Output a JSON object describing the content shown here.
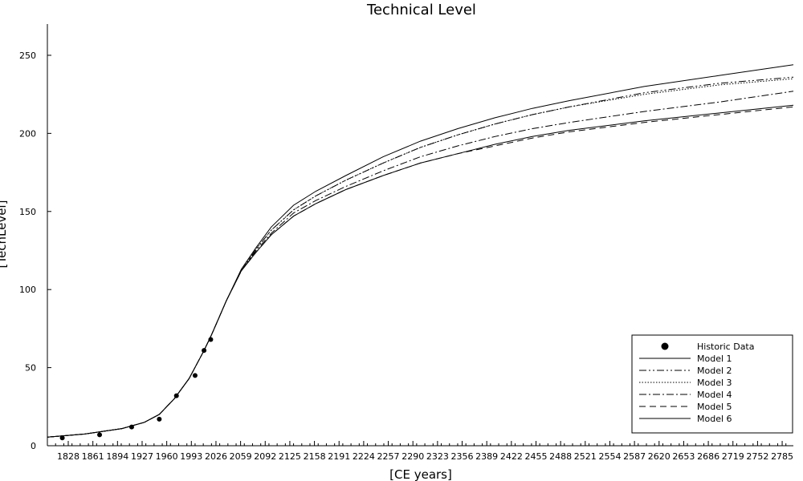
{
  "chart_data": {
    "type": "line",
    "title": "Technical Level",
    "xlabel": "[CE years]",
    "ylabel": "[TechLevel]",
    "xlim": [
      1800,
      2800
    ],
    "ylim": [
      0,
      270
    ],
    "x_ticks": [
      1828,
      1861,
      1894,
      1927,
      1960,
      1993,
      2026,
      2059,
      2092,
      2125,
      2158,
      2191,
      2224,
      2257,
      2290,
      2323,
      2356,
      2389,
      2422,
      2455,
      2488,
      2521,
      2554,
      2587,
      2620,
      2653,
      2686,
      2719,
      2752,
      2785
    ],
    "y_ticks": [
      0,
      50,
      100,
      150,
      200,
      250
    ],
    "grid": false,
    "legend_position": "bottom-right",
    "historic_data": {
      "name": "Historic Data",
      "x": [
        1820,
        1870,
        1913,
        1950,
        1973,
        1998,
        2010,
        2019
      ],
      "y": [
        5,
        7,
        12,
        17,
        32,
        45,
        61,
        68
      ]
    },
    "x": [
      1800,
      1850,
      1900,
      1930,
      1950,
      1970,
      1990,
      2000,
      2010,
      2020,
      2030,
      2040,
      2060,
      2080,
      2100,
      2130,
      2160,
      2200,
      2250,
      2300,
      2350,
      2400,
      2450,
      2500,
      2600,
      2700,
      2800
    ],
    "series": [
      {
        "name": "Model 1",
        "dash": "",
        "values": [
          5.5,
          7.5,
          11,
          15,
          20,
          30,
          43,
          52,
          61,
          71,
          82,
          93,
          113,
          127,
          140,
          154,
          163,
          173,
          185,
          195,
          203,
          210,
          216,
          221,
          230,
          237,
          244
        ]
      },
      {
        "name": "Model 2",
        "dash": "9,3,2,3,2,3",
        "values": [
          5.5,
          7.5,
          11,
          15,
          20,
          30,
          43,
          52,
          61,
          71,
          82,
          93,
          112,
          126,
          138,
          151,
          160,
          170,
          181,
          191,
          199,
          206,
          212,
          217,
          226,
          232,
          236
        ]
      },
      {
        "name": "Model 3",
        "dash": "1.5,2",
        "values": [
          5.5,
          7.5,
          11,
          15,
          20,
          30,
          43,
          52,
          61,
          71,
          82,
          93,
          112,
          126,
          138,
          151,
          160,
          170,
          181,
          191,
          199,
          206,
          212,
          217,
          225,
          231,
          235
        ]
      },
      {
        "name": "Model 4",
        "dash": "9,3,2,3",
        "values": [
          5.5,
          7.5,
          11,
          15,
          20,
          30,
          43,
          52,
          61,
          71,
          82,
          93,
          112,
          125,
          136,
          149,
          157,
          166,
          176,
          185,
          192,
          198,
          203,
          207,
          214,
          220,
          227
        ]
      },
      {
        "name": "Model 5",
        "dash": "8,5",
        "values": [
          5.5,
          7.5,
          11,
          15,
          20,
          30,
          43,
          52,
          61,
          71,
          82,
          93,
          112,
          124,
          135,
          147,
          155,
          164,
          173,
          181,
          187,
          192,
          197,
          201,
          207,
          212,
          217
        ]
      },
      {
        "name": "Model 6",
        "dash": "",
        "values": [
          5.5,
          7.5,
          11,
          15,
          20,
          30,
          43,
          52,
          61,
          71,
          82,
          93,
          112,
          124,
          135,
          147,
          155,
          164,
          173,
          181,
          187,
          193,
          198,
          202,
          208,
          213,
          218
        ]
      }
    ]
  }
}
